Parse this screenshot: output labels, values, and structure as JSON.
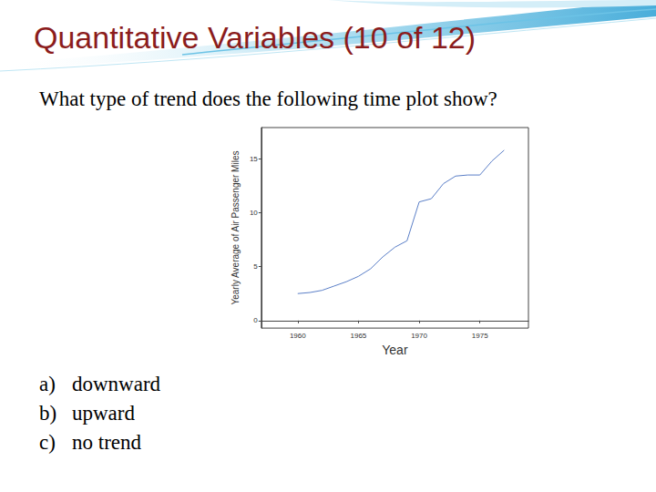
{
  "slide": {
    "title": "Quantitative Variables (10 of 12)",
    "question": "What type of trend does the following time plot show?",
    "options": [
      {
        "label": "a)",
        "text": "downward"
      },
      {
        "label": "b)",
        "text": "upward"
      },
      {
        "label": "c)",
        "text": "no trend"
      }
    ]
  },
  "chart_data": {
    "type": "line",
    "x_label": "Year",
    "y_label": "Yearly Average of Air Passenger Miles",
    "x": [
      1960,
      1961,
      1962,
      1963,
      1964,
      1965,
      1966,
      1967,
      1968,
      1969,
      1970,
      1971,
      1972,
      1973,
      1974,
      1975,
      1976,
      1977
    ],
    "values": [
      2.5,
      2.6,
      2.8,
      3.2,
      3.6,
      4.1,
      4.8,
      5.9,
      6.8,
      7.4,
      11.0,
      11.3,
      12.7,
      13.4,
      13.5,
      13.5,
      14.8,
      15.8
    ],
    "color": "#5b7fc7",
    "xlim": [
      1957,
      1979
    ],
    "ylim": [
      -0.7,
      17.9
    ],
    "xticks": [
      1960,
      1965,
      1970,
      1975
    ],
    "yticks": [
      0,
      5,
      10,
      15
    ],
    "grid": false,
    "marker": "none",
    "line_style": "solid"
  }
}
